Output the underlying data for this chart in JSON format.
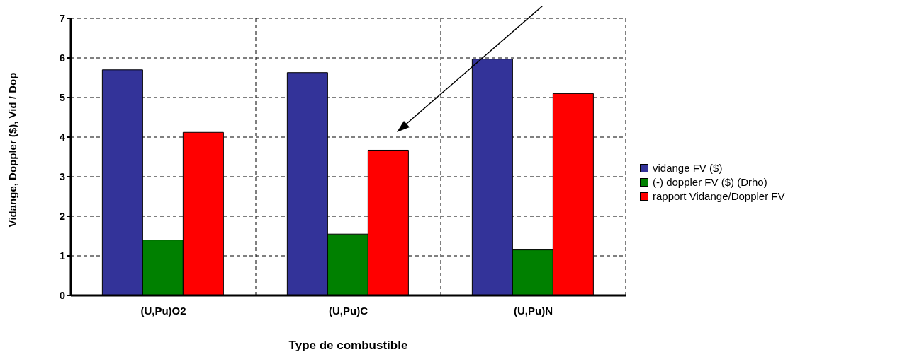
{
  "chart_data": {
    "type": "bar",
    "xlabel": "Type de combustible",
    "ylabel": "Vidange, Doppler ($), Vid / Dop",
    "categories": [
      "(U,Pu)O2",
      "(U,Pu)C",
      "(U,Pu)N"
    ],
    "series": [
      {
        "name": "vidange FV ($)",
        "color": "#333399",
        "values": [
          5.7,
          5.63,
          5.97
        ]
      },
      {
        "name": "(-) doppler FV ($) (Drho)",
        "color": "#008000",
        "values": [
          1.4,
          1.55,
          1.15
        ]
      },
      {
        "name": "rapport Vidange/Doppler FV",
        "color": "#ff0000",
        "values": [
          4.12,
          3.67,
          5.1
        ]
      }
    ],
    "ylim": [
      0,
      7
    ],
    "yticks": [
      0,
      1,
      2,
      3,
      4,
      5,
      6,
      7
    ],
    "grid": true,
    "legend": "right"
  }
}
